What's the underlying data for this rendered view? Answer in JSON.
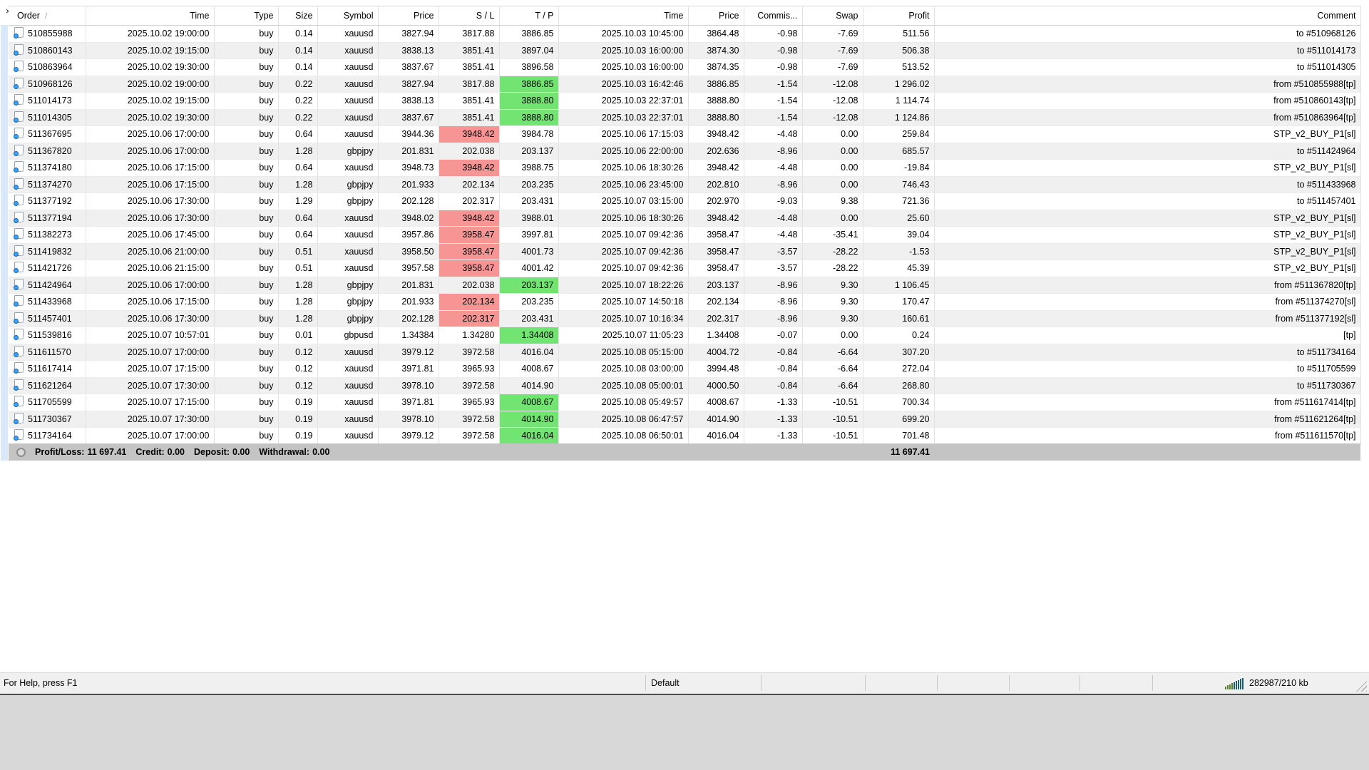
{
  "window": {
    "close_glyph": "×"
  },
  "colors": {
    "tp_highlight": "#72e472",
    "sl_highlight": "#f79494",
    "summary_bg": "#c4c4c4"
  },
  "icons": {
    "order_icon": "document-page-with-blue-dot",
    "summary_icon": "gray-balance-circle",
    "connection_icon": "ascending-traffic-bars",
    "resize_grip_icon": "diagonal-resize-grip",
    "sort_icon": "ascending-sort-slash"
  },
  "history_panel": {
    "sort_indicator": "/",
    "columns": [
      {
        "key": "order",
        "label": "Order",
        "align": "left"
      },
      {
        "key": "open_time",
        "label": "Time",
        "align": "right"
      },
      {
        "key": "type",
        "label": "Type",
        "align": "right"
      },
      {
        "key": "size",
        "label": "Size",
        "align": "right"
      },
      {
        "key": "symbol",
        "label": "Symbol",
        "align": "right"
      },
      {
        "key": "price",
        "label": "Price",
        "align": "right"
      },
      {
        "key": "sl",
        "label": "S / L",
        "align": "right"
      },
      {
        "key": "tp",
        "label": "T / P",
        "align": "right"
      },
      {
        "key": "close_time",
        "label": "Time",
        "align": "right"
      },
      {
        "key": "close_price",
        "label": "Price",
        "align": "right"
      },
      {
        "key": "commission",
        "label": "Commis...",
        "align": "right"
      },
      {
        "key": "swap",
        "label": "Swap",
        "align": "right"
      },
      {
        "key": "profit",
        "label": "Profit",
        "align": "right"
      },
      {
        "key": "comment",
        "label": "Comment",
        "align": "right"
      }
    ],
    "rows": [
      {
        "highlight": "",
        "cells": [
          "510855988",
          "2025.10.02 19:00:00",
          "buy",
          "0.14",
          "xauusd",
          "3827.94",
          "3817.88",
          "3886.85",
          "2025.10.03 10:45:00",
          "3864.48",
          "-0.98",
          "-7.69",
          "511.56",
          "to #510968126"
        ]
      },
      {
        "highlight": "",
        "cells": [
          "510860143",
          "2025.10.02 19:15:00",
          "buy",
          "0.14",
          "xauusd",
          "3838.13",
          "3851.41",
          "3897.04",
          "2025.10.03 16:00:00",
          "3874.30",
          "-0.98",
          "-7.69",
          "506.38",
          "to #511014173"
        ]
      },
      {
        "highlight": "",
        "cells": [
          "510863964",
          "2025.10.02 19:30:00",
          "buy",
          "0.14",
          "xauusd",
          "3837.67",
          "3851.41",
          "3896.58",
          "2025.10.03 16:00:00",
          "3874.35",
          "-0.98",
          "-7.69",
          "513.52",
          "to #511014305"
        ]
      },
      {
        "highlight": "tp",
        "cells": [
          "510968126",
          "2025.10.02 19:00:00",
          "buy",
          "0.22",
          "xauusd",
          "3827.94",
          "3817.88",
          "3886.85",
          "2025.10.03 16:42:46",
          "3886.85",
          "-1.54",
          "-12.08",
          "1 296.02",
          "from #510855988[tp]"
        ]
      },
      {
        "highlight": "tp",
        "cells": [
          "511014173",
          "2025.10.02 19:15:00",
          "buy",
          "0.22",
          "xauusd",
          "3838.13",
          "3851.41",
          "3888.80",
          "2025.10.03 22:37:01",
          "3888.80",
          "-1.54",
          "-12.08",
          "1 114.74",
          "from #510860143[tp]"
        ]
      },
      {
        "highlight": "tp",
        "cells": [
          "511014305",
          "2025.10.02 19:30:00",
          "buy",
          "0.22",
          "xauusd",
          "3837.67",
          "3851.41",
          "3888.80",
          "2025.10.03 22:37:01",
          "3888.80",
          "-1.54",
          "-12.08",
          "1 124.86",
          "from #510863964[tp]"
        ]
      },
      {
        "highlight": "sl",
        "cells": [
          "511367695",
          "2025.10.06 17:00:00",
          "buy",
          "0.64",
          "xauusd",
          "3944.36",
          "3948.42",
          "3984.78",
          "2025.10.06 17:15:03",
          "3948.42",
          "-4.48",
          "0.00",
          "259.84",
          "STP_v2_BUY_P1[sl]"
        ]
      },
      {
        "highlight": "",
        "cells": [
          "511367820",
          "2025.10.06 17:00:00",
          "buy",
          "1.28",
          "gbpjpy",
          "201.831",
          "202.038",
          "203.137",
          "2025.10.06 22:00:00",
          "202.636",
          "-8.96",
          "0.00",
          "685.57",
          "to #511424964"
        ]
      },
      {
        "highlight": "sl",
        "cells": [
          "511374180",
          "2025.10.06 17:15:00",
          "buy",
          "0.64",
          "xauusd",
          "3948.73",
          "3948.42",
          "3988.75",
          "2025.10.06 18:30:26",
          "3948.42",
          "-4.48",
          "0.00",
          "-19.84",
          "STP_v2_BUY_P1[sl]"
        ]
      },
      {
        "highlight": "",
        "cells": [
          "511374270",
          "2025.10.06 17:15:00",
          "buy",
          "1.28",
          "gbpjpy",
          "201.933",
          "202.134",
          "203.235",
          "2025.10.06 23:45:00",
          "202.810",
          "-8.96",
          "0.00",
          "746.43",
          "to #511433968"
        ]
      },
      {
        "highlight": "",
        "cells": [
          "511377192",
          "2025.10.06 17:30:00",
          "buy",
          "1.29",
          "gbpjpy",
          "202.128",
          "202.317",
          "203.431",
          "2025.10.07 03:15:00",
          "202.970",
          "-9.03",
          "9.38",
          "721.36",
          "to #511457401"
        ]
      },
      {
        "highlight": "sl",
        "cells": [
          "511377194",
          "2025.10.06 17:30:00",
          "buy",
          "0.64",
          "xauusd",
          "3948.02",
          "3948.42",
          "3988.01",
          "2025.10.06 18:30:26",
          "3948.42",
          "-4.48",
          "0.00",
          "25.60",
          "STP_v2_BUY_P1[sl]"
        ]
      },
      {
        "highlight": "sl",
        "cells": [
          "511382273",
          "2025.10.06 17:45:00",
          "buy",
          "0.64",
          "xauusd",
          "3957.86",
          "3958.47",
          "3997.81",
          "2025.10.07 09:42:36",
          "3958.47",
          "-4.48",
          "-35.41",
          "39.04",
          "STP_v2_BUY_P1[sl]"
        ]
      },
      {
        "highlight": "sl",
        "cells": [
          "511419832",
          "2025.10.06 21:00:00",
          "buy",
          "0.51",
          "xauusd",
          "3958.50",
          "3958.47",
          "4001.73",
          "2025.10.07 09:42:36",
          "3958.47",
          "-3.57",
          "-28.22",
          "-1.53",
          "STP_v2_BUY_P1[sl]"
        ]
      },
      {
        "highlight": "sl",
        "cells": [
          "511421726",
          "2025.10.06 21:15:00",
          "buy",
          "0.51",
          "xauusd",
          "3957.58",
          "3958.47",
          "4001.42",
          "2025.10.07 09:42:36",
          "3958.47",
          "-3.57",
          "-28.22",
          "45.39",
          "STP_v2_BUY_P1[sl]"
        ]
      },
      {
        "highlight": "tp",
        "cells": [
          "511424964",
          "2025.10.06 17:00:00",
          "buy",
          "1.28",
          "gbpjpy",
          "201.831",
          "202.038",
          "203.137",
          "2025.10.07 18:22:26",
          "203.137",
          "-8.96",
          "9.30",
          "1 106.45",
          "from #511367820[tp]"
        ]
      },
      {
        "highlight": "sl",
        "cells": [
          "511433968",
          "2025.10.06 17:15:00",
          "buy",
          "1.28",
          "gbpjpy",
          "201.933",
          "202.134",
          "203.235",
          "2025.10.07 14:50:18",
          "202.134",
          "-8.96",
          "9.30",
          "170.47",
          "from #511374270[sl]"
        ]
      },
      {
        "highlight": "sl",
        "cells": [
          "511457401",
          "2025.10.06 17:30:00",
          "buy",
          "1.28",
          "gbpjpy",
          "202.128",
          "202.317",
          "203.431",
          "2025.10.07 10:16:34",
          "202.317",
          "-8.96",
          "9.30",
          "160.61",
          "from #511377192[sl]"
        ]
      },
      {
        "highlight": "tp",
        "cells": [
          "511539816",
          "2025.10.07 10:57:01",
          "buy",
          "0.01",
          "gbpusd",
          "1.34384",
          "1.34280",
          "1.34408",
          "2025.10.07 11:05:23",
          "1.34408",
          "-0.07",
          "0.00",
          "0.24",
          "[tp]"
        ]
      },
      {
        "highlight": "",
        "cells": [
          "511611570",
          "2025.10.07 17:00:00",
          "buy",
          "0.12",
          "xauusd",
          "3979.12",
          "3972.58",
          "4016.04",
          "2025.10.08 05:15:00",
          "4004.72",
          "-0.84",
          "-6.64",
          "307.20",
          "to #511734164"
        ]
      },
      {
        "highlight": "",
        "cells": [
          "511617414",
          "2025.10.07 17:15:00",
          "buy",
          "0.12",
          "xauusd",
          "3971.81",
          "3965.93",
          "4008.67",
          "2025.10.08 03:00:00",
          "3994.48",
          "-0.84",
          "-6.64",
          "272.04",
          "to #511705599"
        ]
      },
      {
        "highlight": "",
        "cells": [
          "511621264",
          "2025.10.07 17:30:00",
          "buy",
          "0.12",
          "xauusd",
          "3978.10",
          "3972.58",
          "4014.90",
          "2025.10.08 05:00:01",
          "4000.50",
          "-0.84",
          "-6.64",
          "268.80",
          "to #511730367"
        ]
      },
      {
        "highlight": "tp",
        "cells": [
          "511705599",
          "2025.10.07 17:15:00",
          "buy",
          "0.19",
          "xauusd",
          "3971.81",
          "3965.93",
          "4008.67",
          "2025.10.08 05:49:57",
          "4008.67",
          "-1.33",
          "-10.51",
          "700.34",
          "from #511617414[tp]"
        ]
      },
      {
        "highlight": "tp",
        "cells": [
          "511730367",
          "2025.10.07 17:30:00",
          "buy",
          "0.19",
          "xauusd",
          "3978.10",
          "3972.58",
          "4014.90",
          "2025.10.08 06:47:57",
          "4014.90",
          "-1.33",
          "-10.51",
          "699.20",
          "from #511621264[tp]"
        ]
      },
      {
        "highlight": "tp",
        "cells": [
          "511734164",
          "2025.10.07 17:00:00",
          "buy",
          "0.19",
          "xauusd",
          "3979.12",
          "3972.58",
          "4016.04",
          "2025.10.08 06:50:01",
          "4016.04",
          "-1.33",
          "-10.51",
          "701.48",
          "from #511611570[tp]"
        ]
      }
    ]
  },
  "summary": {
    "profit_loss_label": "Profit/Loss:",
    "profit_loss_value": "11 697.41",
    "credit_label": "Credit:",
    "credit_value": "0.00",
    "deposit_label": "Deposit:",
    "deposit_value": "0.00",
    "withdrawal_label": "Withdrawal:",
    "withdrawal_value": "0.00",
    "profit_column_total": "11 697.41"
  },
  "status_bar": {
    "help_text": "For Help, press F1",
    "profile": "Default",
    "traffic": "282987/210 kb"
  }
}
